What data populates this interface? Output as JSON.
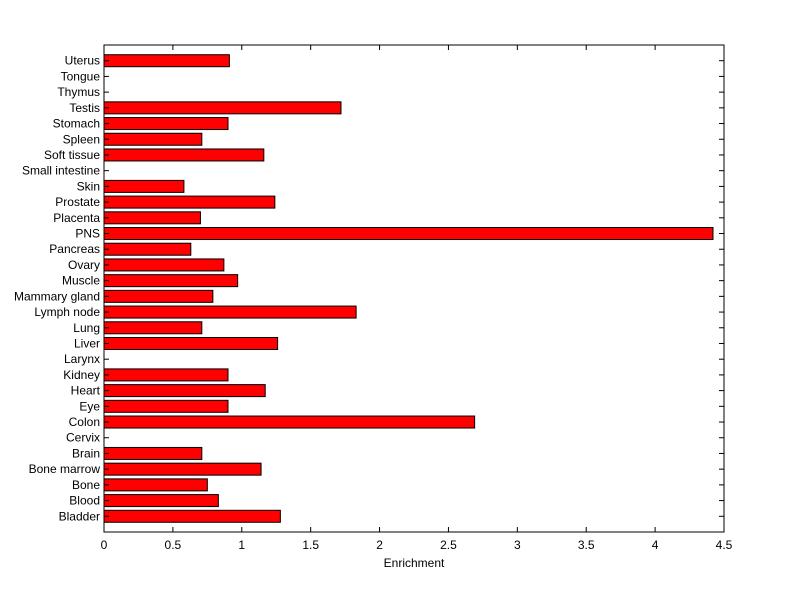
{
  "chart_data": {
    "type": "bar",
    "orientation": "horizontal",
    "title": "",
    "xlabel": "Enrichment",
    "ylabel": "",
    "xlim": [
      0,
      4.5
    ],
    "xticks": [
      0,
      0.5,
      1,
      1.5,
      2,
      2.5,
      3,
      3.5,
      4,
      4.5
    ],
    "xtick_labels": [
      "0",
      "0.5",
      "1",
      "1.5",
      "2",
      "2.5",
      "3",
      "3.5",
      "4",
      "4.5"
    ],
    "grid": false,
    "legend": false,
    "bar_color": "#ff0000",
    "categories": [
      "Uterus",
      "Tongue",
      "Thymus",
      "Testis",
      "Stomach",
      "Spleen",
      "Soft tissue",
      "Small intestine",
      "Skin",
      "Prostate",
      "Placenta",
      "PNS",
      "Pancreas",
      "Ovary",
      "Muscle",
      "Mammary gland",
      "Lymph node",
      "Lung",
      "Liver",
      "Larynx",
      "Kidney",
      "Heart",
      "Eye",
      "Colon",
      "Cervix",
      "Brain",
      "Bone marrow",
      "Bone",
      "Blood",
      "Bladder"
    ],
    "values": [
      0.91,
      0,
      0,
      1.72,
      0.9,
      0.71,
      1.16,
      0,
      0.58,
      1.24,
      0.7,
      4.42,
      0.63,
      0.87,
      0.97,
      0.79,
      1.83,
      0.71,
      1.26,
      0,
      0.9,
      1.17,
      0.9,
      2.69,
      0,
      0.71,
      1.14,
      0.75,
      0.83,
      1.28
    ]
  }
}
